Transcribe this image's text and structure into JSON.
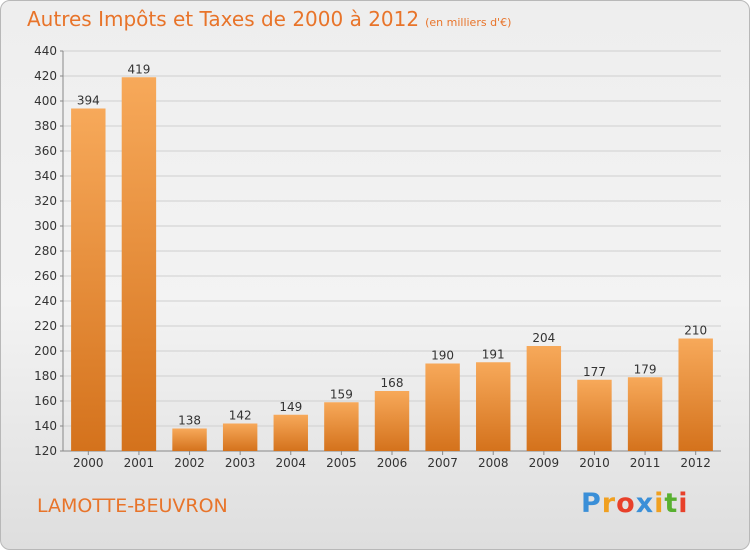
{
  "header": {
    "title": "Autres Impôts et Taxes de 2000 à 2012",
    "unit": "(en milliers d'€)"
  },
  "footer": {
    "commune": "LAMOTTE-BEUVRON",
    "brand_letters": [
      "P",
      "r",
      "o",
      "x",
      "i",
      "t",
      "i"
    ],
    "brand_colors": [
      "#3a8fd8",
      "#f0a020",
      "#e8402a",
      "#3a8fd8",
      "#f0a020",
      "#58b030",
      "#e8402a"
    ]
  },
  "colors": {
    "bar_top": "#f7a95a",
    "bar_bottom": "#d4721c",
    "title": "#e8742a",
    "grid": "#cfcfcf"
  },
  "chart_data": {
    "type": "bar",
    "categories": [
      "2000",
      "2001",
      "2002",
      "2003",
      "2004",
      "2005",
      "2006",
      "2007",
      "2008",
      "2009",
      "2010",
      "2011",
      "2012"
    ],
    "values": [
      394,
      419,
      138,
      142,
      149,
      159,
      168,
      190,
      191,
      204,
      177,
      179,
      210
    ],
    "title": "Autres Impôts et Taxes de 2000 à 2012",
    "ylabel": "",
    "xlabel": "",
    "ylim": [
      120,
      440
    ],
    "yticks": [
      120,
      140,
      160,
      180,
      200,
      220,
      240,
      260,
      280,
      300,
      320,
      340,
      360,
      380,
      400,
      420,
      440
    ],
    "grid": true,
    "legend": "none"
  }
}
